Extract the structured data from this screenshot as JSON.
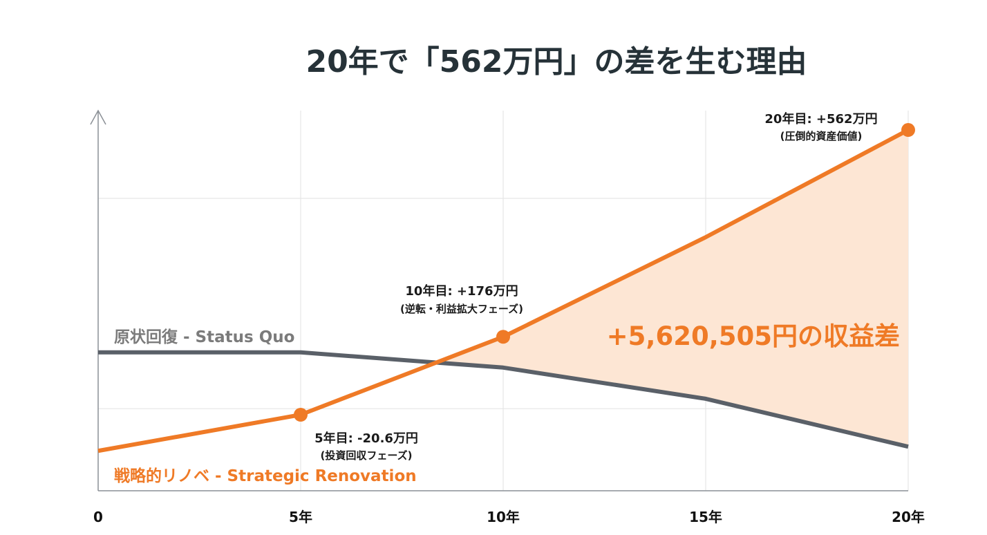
{
  "chart_data": {
    "type": "line",
    "title": "20年で「562万円」の差を生む理由",
    "x": [
      0,
      5,
      10,
      15,
      20
    ],
    "x_tick_labels": [
      "0",
      "5年",
      "10年",
      "15年",
      "20年"
    ],
    "xlim": [
      0,
      20
    ],
    "ylim": [
      0,
      100
    ],
    "y_units": "relative index (no y-axis tick labels shown)",
    "gridlines_y": [
      21.6,
      76.9
    ],
    "grid": true,
    "series": [
      {
        "name": "原状回復 - Status Quo",
        "color": "#5a6068",
        "label_color": "#7b7b7b",
        "values": [
          36.4,
          36.4,
          32.4,
          24.2,
          11.6
        ]
      },
      {
        "name": "戦略的リノベ - Strategic Renovation",
        "color": "#ef7a26",
        "label_color": "#ef7a26",
        "values": [
          10.5,
          20.0,
          40.5,
          66.7,
          94.9
        ],
        "markers_at": [
          5,
          10,
          20
        ]
      }
    ],
    "fill_between": {
      "color": "#fde6d4",
      "label": "+5,620,505円の収益差"
    },
    "annotations": [
      {
        "x": 5,
        "title": "5年目: -20.6万円",
        "subtitle": "(投資回収フェーズ)"
      },
      {
        "x": 10,
        "title": "10年目: +176万円",
        "subtitle": "(逆転・利益拡大フェーズ)"
      },
      {
        "x": 20,
        "title": "20年目: +562万円",
        "subtitle": "(圧倒的資産価値)"
      }
    ]
  }
}
